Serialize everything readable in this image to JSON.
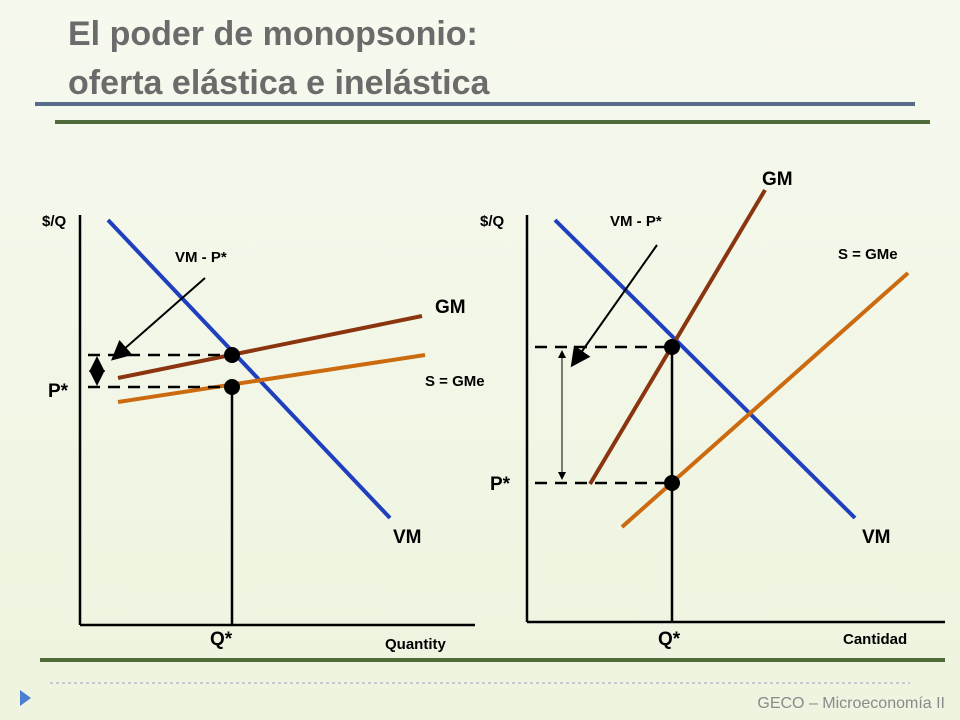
{
  "header": {
    "title_line1": "El poder de monopsonio:",
    "title_line2": "oferta elástica e inelástica"
  },
  "left_diagram": {
    "y_axis_label": "$/Q",
    "x_axis_label": "Quantity",
    "vm_minus_p": "VM - P*",
    "gm": "GM",
    "supply": "S = GMe",
    "price": "P*",
    "vm": "VM",
    "quantity": "Q*"
  },
  "right_diagram": {
    "y_axis_label": "$/Q",
    "x_axis_label": "Cantidad",
    "vm_minus_p": "VM - P*",
    "gm": "GM",
    "supply": "S = GMe",
    "price": "P*",
    "vm": "VM",
    "quantity": "Q*"
  },
  "footer": {
    "text": "GECO – Microeconomía II"
  }
}
